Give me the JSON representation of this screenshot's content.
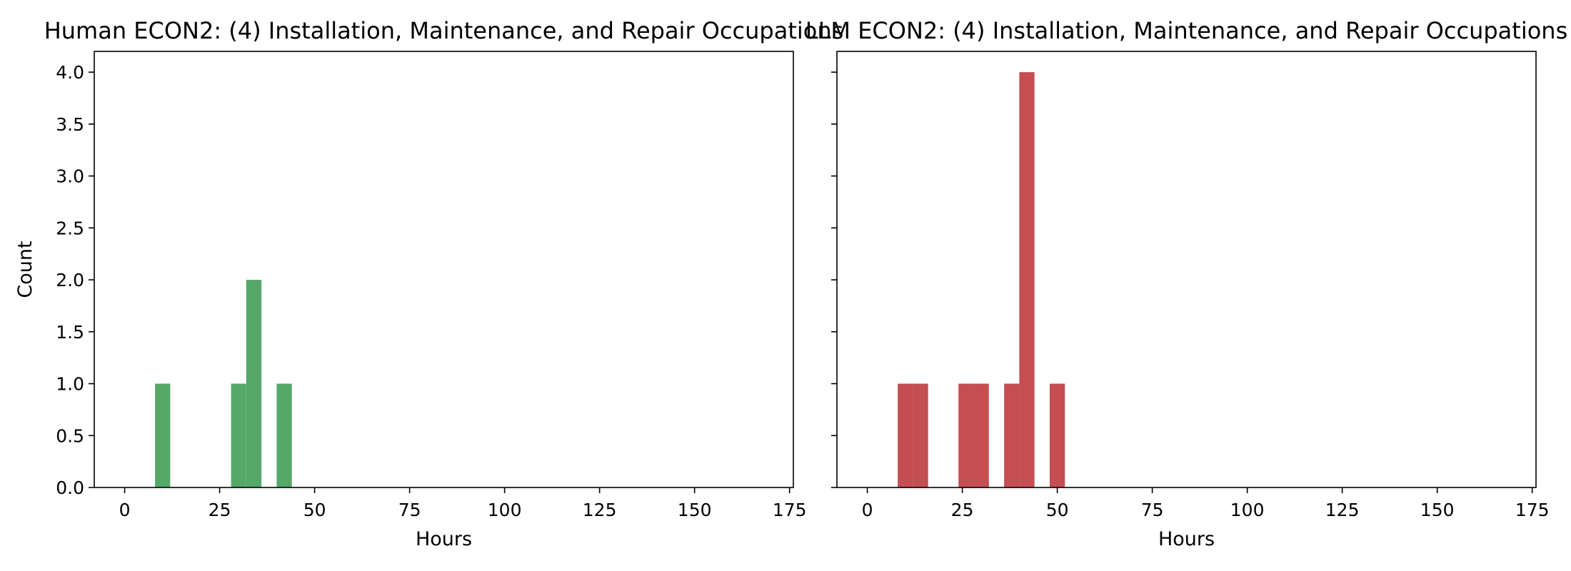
{
  "chart_data": [
    {
      "type": "bar",
      "title": "Human ECON2: (4) Installation, Maintenance, and Repair Occupations",
      "xlabel": "Hours",
      "ylabel": "Count",
      "xlim": [
        -8,
        176
      ],
      "ylim": [
        0,
        4.2
      ],
      "xticks": [
        0,
        25,
        50,
        75,
        100,
        125,
        150,
        175
      ],
      "yticks": [
        "0.0",
        "0.5",
        "1.0",
        "1.5",
        "2.0",
        "2.5",
        "3.0",
        "3.5",
        "4.0"
      ],
      "color": "#55a868",
      "bin_width": 4,
      "bins": [
        {
          "x0": 8,
          "x1": 12,
          "count": 1
        },
        {
          "x0": 28,
          "x1": 32,
          "count": 1
        },
        {
          "x0": 32,
          "x1": 36,
          "count": 2
        },
        {
          "x0": 40,
          "x1": 44,
          "count": 1
        }
      ]
    },
    {
      "type": "bar",
      "title": "LLM ECON2: (4) Installation, Maintenance, and Repair Occupations",
      "xlabel": "Hours",
      "ylabel": "",
      "xlim": [
        -8,
        176
      ],
      "ylim": [
        0,
        4.2
      ],
      "xticks": [
        0,
        25,
        50,
        75,
        100,
        125,
        150,
        175
      ],
      "yticks": [],
      "color": "#c44e52",
      "bin_width": 4,
      "bins": [
        {
          "x0": 8,
          "x1": 12,
          "count": 1
        },
        {
          "x0": 12,
          "x1": 16,
          "count": 1
        },
        {
          "x0": 24,
          "x1": 28,
          "count": 1
        },
        {
          "x0": 28,
          "x1": 32,
          "count": 1
        },
        {
          "x0": 36,
          "x1": 40,
          "count": 1
        },
        {
          "x0": 40,
          "x1": 44,
          "count": 4
        },
        {
          "x0": 48,
          "x1": 52,
          "count": 1
        }
      ]
    }
  ]
}
